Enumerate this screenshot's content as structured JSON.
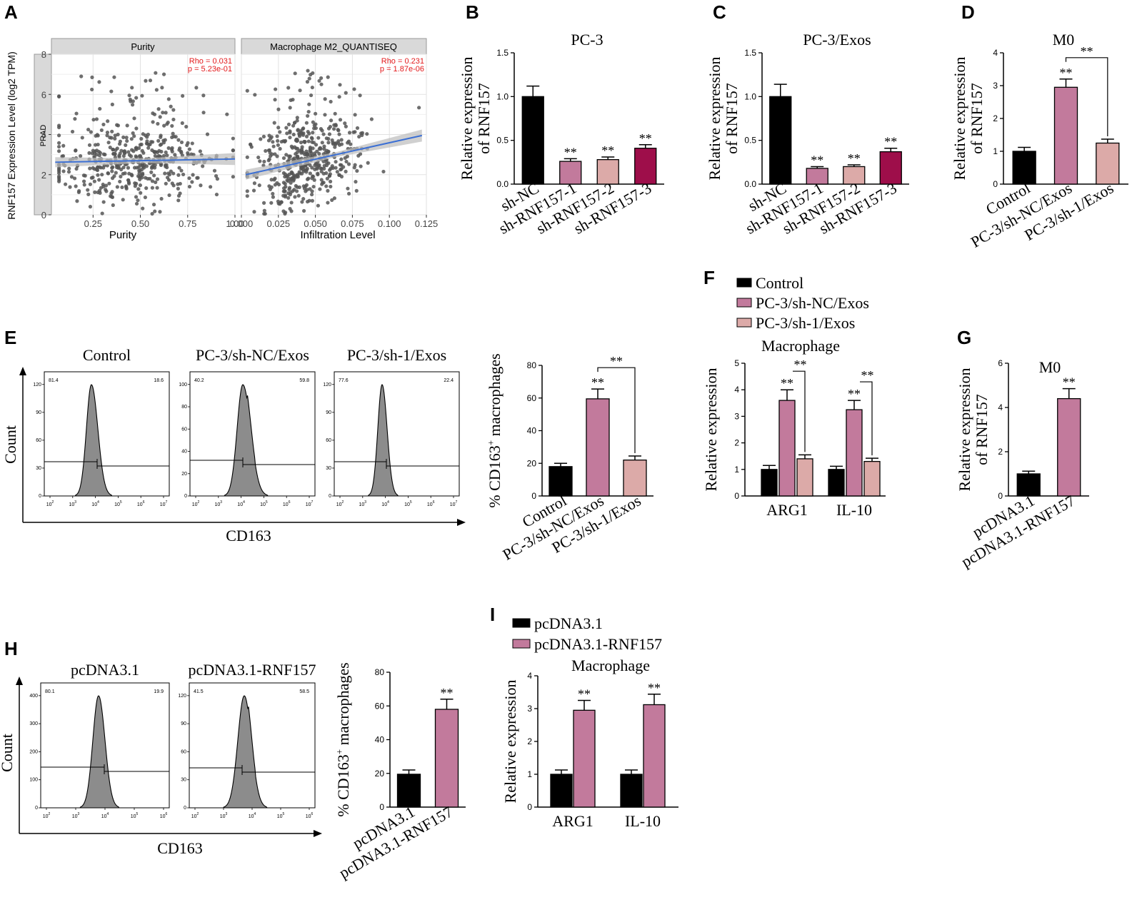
{
  "colors": {
    "black": "#000000",
    "pink": "#c27a9c",
    "lightpink": "#dcaaa8",
    "maroon": "#9e0e4a",
    "grid_bg": "#ffffff",
    "strip_bg": "#d9d9d9",
    "fit_line": "#3b6fd4",
    "ci_band": "#bcbcbc",
    "stat_red": "#e31a1c",
    "hist_fill": "#8c8c8c"
  },
  "panels": {
    "A": "A",
    "B": "B",
    "C": "C",
    "D": "D",
    "E": "E",
    "F": "F",
    "G": "G",
    "H": "H",
    "I": "I"
  },
  "panel_A": {
    "ylabel": "RNF157 Expression Level (log2 TPM)",
    "side_strip": "PRAD",
    "yticks": [
      "0",
      "2",
      "4",
      "6",
      "8"
    ],
    "left": {
      "strip": "Purity",
      "xlabel": "Purity",
      "xticks": [
        "0.25",
        "0.50",
        "0.75",
        "1.00"
      ],
      "rho": "Rho = 0.031",
      "p": "p = 5.23e-01"
    },
    "right": {
      "strip": "Macrophage M2_QUANTISEQ",
      "xlabel": "Infiltration Level",
      "xticks": [
        "0.000",
        "0.025",
        "0.050",
        "0.075",
        "0.100",
        "0.125"
      ],
      "rho": "Rho = 0.231",
      "p": "p = 1.87e-06"
    }
  },
  "chart_data": [
    {
      "id": "A-left",
      "type": "scatter",
      "title": "Purity",
      "xlabel": "Purity",
      "ylabel": "RNF157 Expression Level (log2 TPM)",
      "xlim": [
        0.03,
        1.0
      ],
      "ylim": [
        0,
        8
      ],
      "fit": {
        "x": [
          0.05,
          1.0
        ],
        "y": [
          2.62,
          2.78
        ]
      }
    },
    {
      "id": "A-right",
      "type": "scatter",
      "title": "Macrophage M2_QUANTISEQ",
      "xlabel": "Infiltration Level",
      "xlim": [
        0.0,
        0.125
      ],
      "ylim": [
        0,
        8
      ],
      "fit": {
        "x": [
          0.003,
          0.122
        ],
        "y": [
          2.0,
          3.95
        ]
      }
    },
    {
      "id": "B",
      "type": "bar",
      "title": "PC-3",
      "ylabel": "Relative expression of RNF157",
      "categories": [
        "sh-NC",
        "sh-RNF157-1",
        "sh-RNF157-2",
        "sh-RNF157-3"
      ],
      "values": [
        1.0,
        0.26,
        0.28,
        0.41
      ],
      "errors": [
        0.12,
        0.03,
        0.03,
        0.04
      ],
      "colors": [
        "black",
        "pink",
        "lightpink",
        "maroon"
      ],
      "stars": [
        "",
        "**",
        "**",
        "**"
      ],
      "yticks": [
        "0.0",
        "0.5",
        "1.0",
        "1.5"
      ],
      "ylim": [
        0,
        1.5
      ]
    },
    {
      "id": "C",
      "type": "bar",
      "title": "PC-3/Exos",
      "ylabel": "Relative expression of RNF157",
      "categories": [
        "sh-NC",
        "sh-RNF157-1",
        "sh-RNF157-2",
        "sh-RNF157-3"
      ],
      "values": [
        1.0,
        0.18,
        0.2,
        0.37
      ],
      "errors": [
        0.14,
        0.02,
        0.02,
        0.04
      ],
      "colors": [
        "black",
        "pink",
        "lightpink",
        "maroon"
      ],
      "stars": [
        "",
        "**",
        "**",
        "**"
      ],
      "yticks": [
        "0.0",
        "0.5",
        "1.0",
        "1.5"
      ],
      "ylim": [
        0,
        1.5
      ]
    },
    {
      "id": "D",
      "type": "bar",
      "title": "M0",
      "ylabel": "Relative expression of RNF157",
      "categories": [
        "Control",
        "PC-3/sh-NC/Exos",
        "PC-3/sh-1/Exos"
      ],
      "values": [
        1.0,
        2.95,
        1.25
      ],
      "errors": [
        0.12,
        0.25,
        0.12
      ],
      "colors": [
        "black",
        "pink",
        "lightpink"
      ],
      "stars": [
        "",
        "**",
        ""
      ],
      "bracket": {
        "from": 1,
        "to": 2,
        "label": "**"
      },
      "yticks": [
        "0",
        "1",
        "2",
        "3",
        "4"
      ],
      "ylim": [
        0,
        4
      ]
    },
    {
      "id": "E-bar",
      "type": "bar",
      "ylabel": "% CD163+ macrophages",
      "categories": [
        "Control",
        "PC-3/sh-NC/Exos",
        "PC-3/sh-1/Exos"
      ],
      "values": [
        18.0,
        59.5,
        22.0
      ],
      "errors": [
        2.0,
        6.0,
        2.5
      ],
      "colors": [
        "black",
        "pink",
        "lightpink"
      ],
      "stars": [
        "",
        "**",
        ""
      ],
      "bracket": {
        "from": 1,
        "to": 2,
        "label": "**"
      },
      "yticks": [
        "0",
        "20",
        "40",
        "60",
        "80"
      ],
      "ylim": [
        0,
        80
      ]
    },
    {
      "id": "F",
      "type": "bar",
      "title": "Macrophage",
      "ylabel": "Relative expression",
      "categories": [
        "ARG1",
        "IL-10"
      ],
      "series": [
        {
          "name": "Control",
          "values": [
            1.0,
            1.0
          ],
          "errors": [
            0.15,
            0.12
          ],
          "color": "black"
        },
        {
          "name": "PC-3/sh-NC/Exos",
          "values": [
            3.6,
            3.25
          ],
          "errors": [
            0.4,
            0.35
          ],
          "color": "pink"
        },
        {
          "name": "PC-3/sh-1/Exos",
          "values": [
            1.4,
            1.3
          ],
          "errors": [
            0.15,
            0.12
          ],
          "color": "lightpink"
        }
      ],
      "stars_series": 1,
      "bracket_label": "**",
      "yticks": [
        "0",
        "1",
        "2",
        "3",
        "4",
        "5"
      ],
      "ylim": [
        0,
        5
      ]
    },
    {
      "id": "G",
      "type": "bar",
      "title": "M0",
      "ylabel": "Relative expression of RNF157",
      "categories": [
        "pcDNA3.1",
        "pcDNA3.1-RNF157"
      ],
      "values": [
        1.0,
        4.4
      ],
      "errors": [
        0.12,
        0.45
      ],
      "colors": [
        "black",
        "pink"
      ],
      "stars": [
        "",
        "**"
      ],
      "yticks": [
        "0",
        "2",
        "4",
        "6"
      ],
      "ylim": [
        0,
        6
      ]
    },
    {
      "id": "H-bar",
      "type": "bar",
      "ylabel": "% CD163+ macrophages",
      "categories": [
        "pcDNA3.1",
        "pcDNA3.1-RNF157"
      ],
      "values": [
        19.5,
        58.0
      ],
      "errors": [
        2.5,
        6.0
      ],
      "colors": [
        "black",
        "pink"
      ],
      "stars": [
        "",
        "**"
      ],
      "yticks": [
        "0",
        "20",
        "40",
        "60",
        "80"
      ],
      "ylim": [
        0,
        80
      ]
    },
    {
      "id": "I",
      "type": "bar",
      "title": "Macrophage",
      "ylabel": "Relative expression",
      "categories": [
        "ARG1",
        "IL-10"
      ],
      "series": [
        {
          "name": "pcDNA3.1",
          "values": [
            1.0,
            1.0
          ],
          "errors": [
            0.13,
            0.13
          ],
          "color": "black"
        },
        {
          "name": "pcDNA3.1-RNF157",
          "values": [
            2.95,
            3.12
          ],
          "errors": [
            0.3,
            0.32
          ],
          "color": "pink"
        }
      ],
      "stars_series": 1,
      "yticks": [
        "0",
        "1",
        "2",
        "3",
        "4"
      ],
      "ylim": [
        0,
        4
      ]
    }
  ],
  "flow_E": {
    "ylabel": "Count",
    "xlabel": "CD163",
    "yticks": [
      "0",
      "30",
      "60",
      "90",
      "120"
    ],
    "xticks": [
      "10^2",
      "10^3",
      "10^4",
      "10^5",
      "10^6",
      "10^7"
    ],
    "plots": [
      {
        "title": "Control",
        "left_pct": "81.4",
        "right_pct": "18.6",
        "yticks": [
          "0",
          "30",
          "60",
          "90",
          "120"
        ]
      },
      {
        "title": "PC-3/sh-NC/Exos",
        "left_pct": "40.2",
        "right_pct": "59.8",
        "yticks": [
          "0",
          "20",
          "40",
          "60",
          "80",
          "100"
        ]
      },
      {
        "title": "PC-3/sh-1/Exos",
        "left_pct": "77.6",
        "right_pct": "22.4",
        "yticks": [
          "0",
          "30",
          "60",
          "90",
          "120"
        ]
      }
    ]
  },
  "flow_H": {
    "ylabel": "Count",
    "xlabel": "CD163",
    "xticks": [
      "10^2",
      "10^3",
      "10^4",
      "10^5",
      "10^6"
    ],
    "plots": [
      {
        "title": "pcDNA3.1",
        "left_pct": "80.1",
        "right_pct": "19.9",
        "yticks": [
          "0",
          "100",
          "200",
          "300",
          "400"
        ]
      },
      {
        "title": "pcDNA3.1-RNF157",
        "left_pct": "41.5",
        "right_pct": "58.5",
        "yticks": [
          "0",
          "30",
          "60",
          "90",
          "120"
        ]
      }
    ]
  }
}
